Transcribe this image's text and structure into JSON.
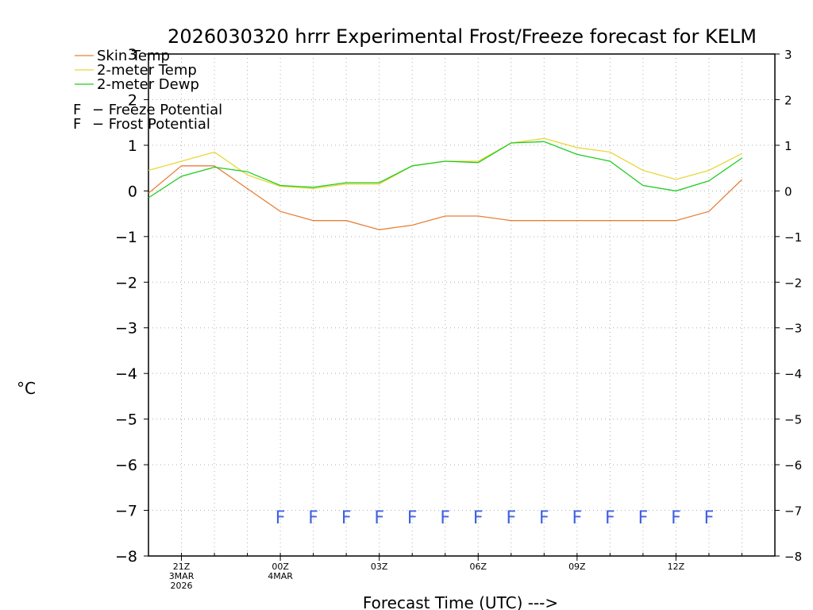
{
  "chart_data": {
    "type": "line",
    "title": "2026030320 hrrr Experimental Frost/Freeze forecast for KELM",
    "ylabel": "°C",
    "xlabel": "Forecast Time (UTC) --->",
    "ylim": [
      -8,
      3
    ],
    "y_ticks": [
      "3",
      "2",
      "1",
      "0",
      "−1",
      "−2",
      "−3",
      "−4",
      "−5",
      "−6",
      "−7",
      "−8"
    ],
    "x_hours": [
      -1,
      0,
      1,
      2,
      3,
      4,
      5,
      6,
      7,
      8,
      9,
      10,
      11,
      12,
      13,
      14,
      15,
      16,
      17,
      18
    ],
    "x_ticks": [
      {
        "hour": 0,
        "lines": [
          "21Z",
          "3MAR",
          "2026"
        ]
      },
      {
        "hour": 3,
        "lines": [
          "00Z",
          "4MAR"
        ]
      },
      {
        "hour": 6,
        "lines": [
          "03Z"
        ]
      },
      {
        "hour": 9,
        "lines": [
          "06Z"
        ]
      },
      {
        "hour": 12,
        "lines": [
          "09Z"
        ]
      },
      {
        "hour": 15,
        "lines": [
          "12Z"
        ]
      }
    ],
    "series": [
      {
        "name": "Skin Temp",
        "color": "#e8803a",
        "x": [
          -1,
          0,
          1,
          2,
          3,
          4,
          5,
          6,
          7,
          8,
          9,
          10,
          11,
          12,
          13,
          14,
          15,
          16,
          17
        ],
        "values": [
          -0.05,
          0.55,
          0.55,
          0.05,
          -0.45,
          -0.65,
          -0.65,
          -0.85,
          -0.75,
          -0.55,
          -0.55,
          -0.65,
          -0.65,
          -0.65,
          -0.65,
          -0.65,
          -0.65,
          -0.45,
          0.25
        ]
      },
      {
        "name": "2-meter Temp",
        "color": "#e8d83a",
        "x": [
          -1,
          0,
          1,
          2,
          3,
          4,
          5,
          6,
          7,
          8,
          9,
          10,
          11,
          12,
          13,
          14,
          15,
          16,
          17
        ],
        "values": [
          0.45,
          0.65,
          0.85,
          0.35,
          0.1,
          0.05,
          0.15,
          0.15,
          0.55,
          0.65,
          0.65,
          1.05,
          1.15,
          0.95,
          0.85,
          0.45,
          0.25,
          0.45,
          0.82
        ]
      },
      {
        "name": "2-meter Dewp",
        "color": "#20cc20",
        "x": [
          -1,
          0,
          1,
          2,
          3,
          4,
          5,
          6,
          7,
          8,
          9,
          10,
          11,
          12,
          13,
          14,
          15,
          16,
          17
        ],
        "values": [
          -0.15,
          0.32,
          0.52,
          0.42,
          0.12,
          0.08,
          0.18,
          0.18,
          0.55,
          0.65,
          0.62,
          1.05,
          1.08,
          0.8,
          0.65,
          0.12,
          0.0,
          0.22,
          0.72
        ]
      }
    ],
    "legend": {
      "placement": "top-left",
      "potential_entries": [
        {
          "symbol": "F",
          "text": "− Freeze Potential",
          "color": "#d020a0"
        },
        {
          "symbol": "F",
          "text": "− Frost Potential",
          "color": "#4060e0"
        }
      ]
    },
    "markers": {
      "label": "F",
      "kind": "Frost Potential",
      "color": "#4060e0",
      "y_value": -7.15,
      "hours": [
        3,
        4,
        5,
        6,
        7,
        8,
        9,
        10,
        11,
        12,
        13,
        14,
        15,
        16
      ]
    },
    "grid": true
  }
}
